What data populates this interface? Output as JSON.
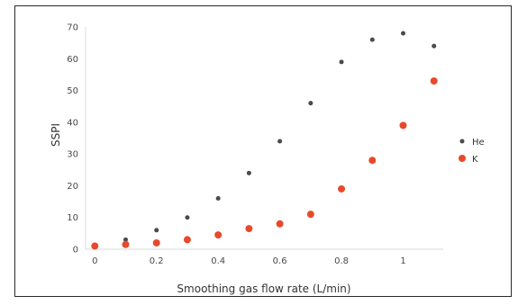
{
  "chart_data": {
    "type": "scatter",
    "xlabel": "Smoothing gas flow rate (L/min)",
    "ylabel": "SSPI",
    "xlim": [
      -0.03,
      1.13
    ],
    "ylim": [
      0,
      70
    ],
    "xticks": [
      0,
      0.2,
      0.4,
      0.6,
      0.8,
      1
    ],
    "yticks": [
      0,
      10,
      20,
      30,
      40,
      50,
      60,
      70
    ],
    "xtick_labels": [
      "0",
      "0.2",
      "0.4",
      "0.6",
      "0.8",
      "1"
    ],
    "ytick_labels": [
      "0",
      "10",
      "20",
      "30",
      "40",
      "50",
      "60",
      "70"
    ],
    "grid": false,
    "legend": {
      "placement": "right"
    },
    "series": [
      {
        "name": "He",
        "color": "#4a4a4a",
        "marker": "dot-small",
        "x": [
          0,
          0.1,
          0.2,
          0.3,
          0.4,
          0.5,
          0.6,
          0.7,
          0.8,
          0.9,
          1.0,
          1.1
        ],
        "y": [
          1,
          3,
          6,
          10,
          16,
          24,
          34,
          46,
          59,
          66,
          68,
          64
        ]
      },
      {
        "name": "K",
        "color": "#e8492b",
        "marker": "dot-large",
        "x": [
          0,
          0.1,
          0.2,
          0.3,
          0.4,
          0.5,
          0.6,
          0.7,
          0.8,
          0.9,
          1.0,
          1.1
        ],
        "y": [
          1,
          1.5,
          2,
          3,
          4.5,
          6.5,
          8,
          11,
          19,
          28,
          39,
          53
        ]
      }
    ]
  }
}
